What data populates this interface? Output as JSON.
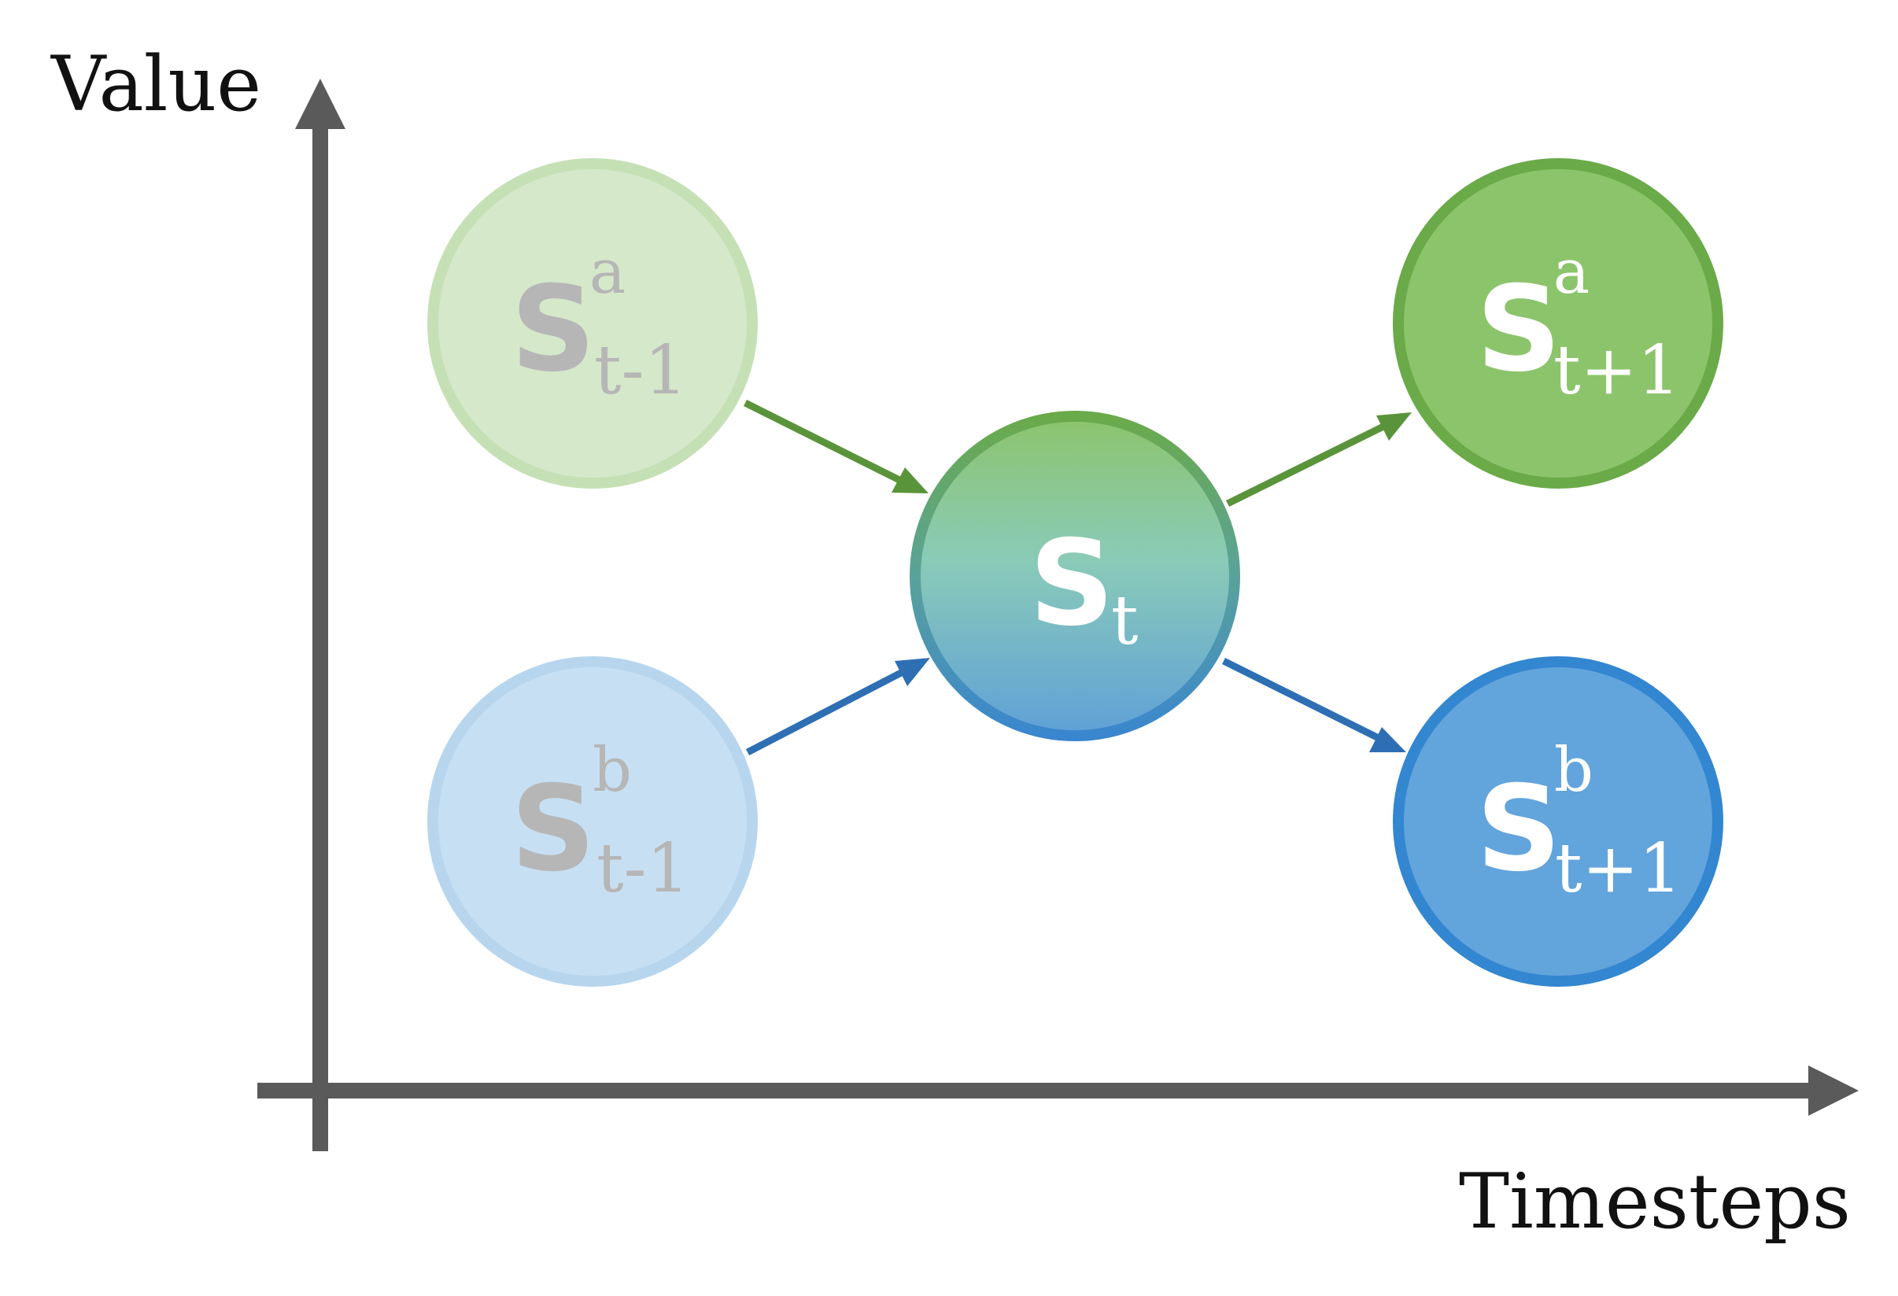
{
  "axes": {
    "y_label": "Value",
    "x_label": "Timesteps"
  },
  "colors": {
    "axis": "#5a5a5a",
    "green": "#5a943a",
    "blue": "#2e6fb4",
    "faded_text": "#b6b6b6",
    "bright_text": "#ffffff"
  },
  "nodes": {
    "prev_a": {
      "base": "S",
      "sup": "a",
      "sub": "t-1"
    },
    "prev_b": {
      "base": "S",
      "sup": "b",
      "sub": "t-1"
    },
    "current": {
      "base": "S",
      "sup": "",
      "sub": "t"
    },
    "next_a": {
      "base": "S",
      "sup": "a",
      "sub": "t+1"
    },
    "next_b": {
      "base": "S",
      "sup": "b",
      "sub": "t+1"
    }
  }
}
